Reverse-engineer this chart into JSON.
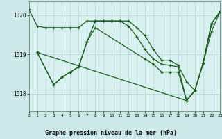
{
  "background_color": "#cce8e8",
  "plot_bg": "#d8f0f0",
  "grid_color": "#b0cccc",
  "line_color": "#1a5c1a",
  "title": "Graphe pression niveau de la mer (hPa)",
  "xlim": [
    0,
    23
  ],
  "ylim": [
    1017.55,
    1020.35
  ],
  "yticks": [
    1018,
    1019,
    1020
  ],
  "xticks": [
    0,
    1,
    2,
    3,
    4,
    5,
    6,
    7,
    8,
    9,
    10,
    11,
    12,
    13,
    14,
    15,
    16,
    17,
    18,
    19,
    20,
    21,
    22,
    23
  ],
  "line1": {
    "x": [
      0,
      1,
      2,
      3,
      4,
      5,
      6,
      7,
      8,
      9,
      10,
      11,
      12,
      13,
      14,
      15,
      16,
      17,
      18,
      19,
      20,
      21,
      22,
      23
    ],
    "y": [
      1020.15,
      1019.72,
      1019.68,
      1019.68,
      1019.68,
      1019.68,
      1019.68,
      1019.85,
      1019.85,
      1019.85,
      1019.85,
      1019.85,
      1019.85,
      1019.68,
      1019.48,
      1019.12,
      1018.85,
      1018.85,
      1018.72,
      1018.3,
      1018.08,
      1018.78,
      1019.78,
      1020.08
    ]
  },
  "line2": {
    "x": [
      1,
      3,
      4,
      5,
      6,
      7,
      8,
      9,
      10,
      11,
      12,
      13,
      14,
      15,
      16,
      17,
      18,
      19,
      20,
      21,
      22,
      23
    ],
    "y": [
      1019.05,
      1018.22,
      1018.42,
      1018.55,
      1018.68,
      1019.32,
      1019.85,
      1019.85,
      1019.85,
      1019.85,
      1019.72,
      1019.45,
      1019.12,
      1018.88,
      1018.75,
      1018.72,
      1018.68,
      1017.82,
      1018.08,
      1018.78,
      1019.78,
      1020.08
    ]
  },
  "line3": {
    "x": [
      1,
      3,
      4,
      5,
      6,
      7,
      8,
      14,
      15,
      16,
      17,
      18,
      19,
      20,
      21,
      22,
      23
    ],
    "y": [
      1019.05,
      1018.22,
      1018.42,
      1018.55,
      1018.68,
      1019.32,
      1019.68,
      1018.88,
      1018.75,
      1018.55,
      1018.55,
      1018.55,
      1017.82,
      1018.08,
      1018.78,
      1019.58,
      1020.08
    ]
  },
  "line4": {
    "x": [
      1,
      19,
      20,
      21,
      22,
      23
    ],
    "y": [
      1019.05,
      1017.82,
      1018.08,
      1018.78,
      1019.78,
      1020.08
    ]
  }
}
